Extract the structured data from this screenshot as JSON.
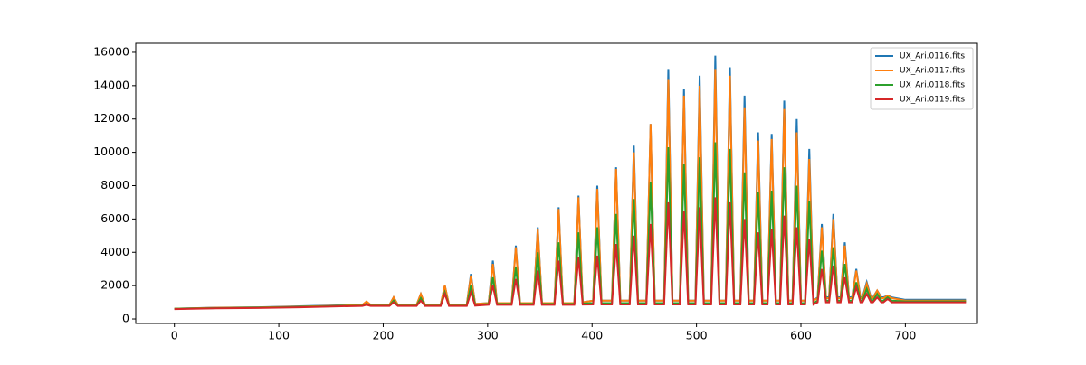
{
  "chart_data": {
    "type": "line",
    "x": [
      0,
      40,
      80,
      120,
      160,
      180,
      184,
      188,
      206,
      210,
      214,
      232,
      236,
      240,
      255,
      259,
      263,
      280,
      284,
      288,
      301,
      305,
      309,
      323,
      327,
      331,
      344,
      348,
      352,
      364,
      368,
      372,
      383,
      387,
      391,
      401,
      405,
      409,
      419,
      423,
      427,
      436,
      440,
      444,
      452,
      456,
      460,
      469,
      473,
      477,
      484,
      488,
      492,
      499,
      503,
      507,
      514,
      518,
      522,
      528,
      532,
      536,
      542,
      546,
      550,
      555,
      559,
      563,
      568,
      572,
      576,
      580,
      584,
      588,
      592,
      596,
      600,
      604,
      608,
      612,
      616,
      620,
      624,
      627,
      631,
      635,
      638,
      642,
      646,
      649,
      653,
      657,
      659,
      663,
      667,
      669,
      673,
      677,
      679,
      683,
      687,
      700,
      730,
      758
    ],
    "series": [
      {
        "name": "UX_Ari.0116.fits",
        "color": "#1f77b4",
        "values": [
          620,
          680,
          700,
          760,
          820,
          850,
          1000,
          850,
          850,
          1300,
          850,
          850,
          1500,
          850,
          850,
          2000,
          850,
          850,
          2700,
          900,
          950,
          3500,
          950,
          950,
          4400,
          950,
          950,
          5500,
          950,
          950,
          6700,
          950,
          950,
          7400,
          1000,
          1100,
          8000,
          1100,
          1100,
          9100,
          1100,
          1100,
          10400,
          1100,
          1100,
          11700,
          1100,
          1100,
          15000,
          1100,
          1100,
          13800,
          1100,
          1100,
          14600,
          1100,
          1100,
          15800,
          1100,
          1100,
          15100,
          1100,
          1100,
          13400,
          1100,
          1100,
          11200,
          1100,
          1100,
          11100,
          1100,
          1100,
          13100,
          1100,
          1100,
          12000,
          1100,
          1100,
          10200,
          1100,
          1300,
          5700,
          1300,
          1300,
          6300,
          1300,
          1300,
          4600,
          1300,
          1300,
          3000,
          1300,
          1300,
          2200,
          1300,
          1300,
          1700,
          1300,
          1300,
          1400,
          1300,
          1150,
          1150,
          1150
        ]
      },
      {
        "name": "UX_Ari.0117.fits",
        "color": "#ff7f0e",
        "values": [
          620,
          670,
          690,
          740,
          800,
          850,
          1050,
          850,
          850,
          1300,
          850,
          850,
          1500,
          850,
          850,
          2000,
          850,
          850,
          2600,
          900,
          950,
          3300,
          950,
          950,
          4300,
          950,
          950,
          5400,
          950,
          950,
          6600,
          950,
          950,
          7300,
          1000,
          1100,
          7800,
          1100,
          1100,
          9000,
          1100,
          1100,
          10000,
          1100,
          1100,
          11700,
          1100,
          1100,
          14400,
          1100,
          1100,
          13400,
          1100,
          1100,
          14000,
          1100,
          1100,
          15000,
          1100,
          1100,
          14600,
          1100,
          1100,
          12700,
          1100,
          1100,
          10700,
          1100,
          1100,
          10800,
          1100,
          1100,
          12600,
          1100,
          1100,
          11200,
          1100,
          1100,
          9600,
          1100,
          1250,
          5500,
          1250,
          1250,
          6000,
          1250,
          1250,
          4400,
          1250,
          1250,
          2900,
          1250,
          1250,
          2100,
          1250,
          1250,
          1700,
          1250,
          1250,
          1400,
          1250,
          1100,
          1100,
          1100
        ]
      },
      {
        "name": "UX_Ari.0118.fits",
        "color": "#2ca02c",
        "values": [
          610,
          650,
          680,
          720,
          780,
          800,
          900,
          800,
          800,
          1100,
          800,
          800,
          1250,
          800,
          800,
          1600,
          800,
          800,
          2000,
          850,
          900,
          2500,
          900,
          900,
          3100,
          900,
          900,
          4000,
          900,
          900,
          4600,
          900,
          900,
          5200,
          920,
          950,
          5500,
          950,
          950,
          6300,
          950,
          950,
          7200,
          950,
          950,
          8200,
          950,
          950,
          10300,
          950,
          950,
          9300,
          950,
          950,
          9700,
          950,
          950,
          10600,
          950,
          950,
          10200,
          950,
          950,
          8800,
          950,
          950,
          7600,
          950,
          950,
          7700,
          950,
          950,
          9100,
          950,
          950,
          8000,
          950,
          950,
          7100,
          950,
          1100,
          4100,
          1100,
          1100,
          4300,
          1100,
          1100,
          3300,
          1100,
          1100,
          2200,
          1100,
          1100,
          1800,
          1100,
          1100,
          1500,
          1100,
          1100,
          1300,
          1100,
          1050,
          1050,
          1050
        ]
      },
      {
        "name": "UX_Ari.0119.fits",
        "color": "#d62728",
        "values": [
          590,
          640,
          660,
          700,
          760,
          780,
          850,
          780,
          780,
          1000,
          780,
          780,
          1100,
          780,
          780,
          1500,
          780,
          780,
          1600,
          800,
          850,
          2000,
          850,
          850,
          2400,
          850,
          850,
          2900,
          850,
          850,
          3500,
          850,
          850,
          3700,
          860,
          870,
          3800,
          870,
          870,
          4500,
          870,
          870,
          5000,
          870,
          870,
          5700,
          870,
          870,
          7000,
          870,
          870,
          6500,
          870,
          870,
          6700,
          870,
          870,
          7300,
          870,
          870,
          7000,
          870,
          870,
          6000,
          870,
          870,
          5200,
          870,
          870,
          5400,
          870,
          870,
          6200,
          870,
          870,
          5500,
          870,
          870,
          4800,
          870,
          1000,
          3000,
          1000,
          1000,
          3200,
          1000,
          1000,
          2500,
          1000,
          1000,
          1900,
          1000,
          1000,
          1500,
          1000,
          1000,
          1300,
          1000,
          1000,
          1200,
          1000,
          1000,
          1000,
          1000
        ]
      }
    ],
    "xlim": [
      -37,
      769
    ],
    "xticks": [
      0,
      100,
      200,
      300,
      400,
      500,
      600,
      700
    ],
    "ylim": [
      -270,
      16540
    ],
    "yticks": [
      0,
      2000,
      4000,
      6000,
      8000,
      10000,
      12000,
      14000,
      16000
    ],
    "grid": false,
    "legend": "upper right"
  }
}
